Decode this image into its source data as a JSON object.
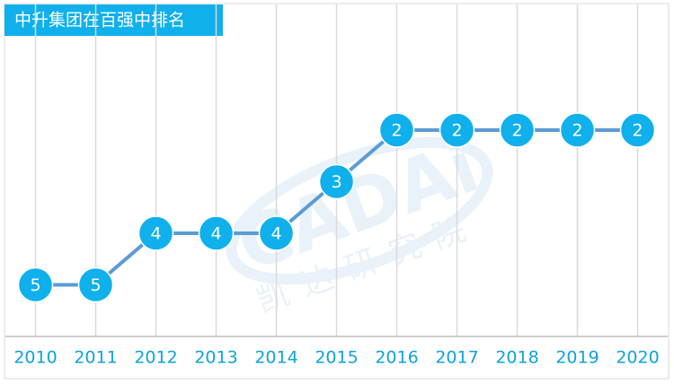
{
  "chart_data": {
    "type": "line",
    "title": "中升集团在百强中排名",
    "categories": [
      "2010",
      "2011",
      "2012",
      "2013",
      "2014",
      "2015",
      "2016",
      "2017",
      "2018",
      "2019",
      "2020"
    ],
    "values": [
      5,
      5,
      4,
      4,
      4,
      3,
      2,
      2,
      2,
      2,
      2
    ],
    "color": "#5b9bd5",
    "marker_color": "#0fb0ec",
    "label_color": "#ffffff",
    "ylim": [
      6,
      0
    ],
    "grid": true,
    "watermark": {
      "logo": "CADAi",
      "text": "凯达研究院"
    }
  }
}
